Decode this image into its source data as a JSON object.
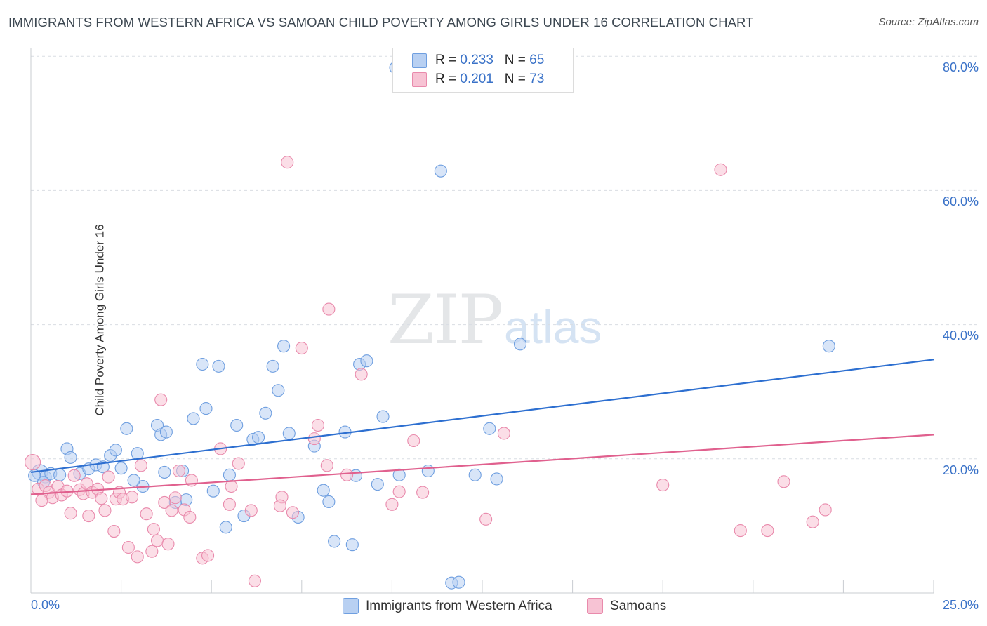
{
  "title": "IMMIGRANTS FROM WESTERN AFRICA VS SAMOAN CHILD POVERTY AMONG GIRLS UNDER 16 CORRELATION CHART",
  "source": "Source: ZipAtlas.com",
  "watermark": {
    "zip": "ZIP",
    "atlas": "atlas"
  },
  "colors": {
    "blue_fill": "#b8d0f2",
    "blue_stroke": "#6f9fe0",
    "blue_line": "#2d6fd0",
    "pink_fill": "#f7c3d4",
    "pink_stroke": "#e98aac",
    "pink_line": "#e0608e",
    "grid": "#d9dde3",
    "tick_text": "#3a72c8"
  },
  "legend_top": [
    {
      "r_label": "R = ",
      "r_value": "0.233",
      "n_label": "N = ",
      "n_value": "65"
    },
    {
      "r_label": "R = ",
      "r_value": "0.201",
      "n_label": "N = ",
      "n_value": "73"
    }
  ],
  "legend_bottom": [
    "Immigrants from Western Africa",
    "Samoans"
  ],
  "ylabel": "Child Poverty Among Girls Under 16",
  "y_ticks": [
    "80.0%",
    "60.0%",
    "40.0%",
    "20.0%"
  ],
  "x_ticks": [
    "0.0%",
    "25.0%"
  ],
  "chart_data": {
    "type": "scatter",
    "title": "IMMIGRANTS FROM WESTERN AFRICA VS SAMOAN CHILD POVERTY AMONG GIRLS UNDER 16 CORRELATION CHART",
    "xlabel": "",
    "ylabel": "Child Poverty Among Girls Under 16",
    "xlim": [
      0,
      25
    ],
    "ylim": [
      0,
      82
    ],
    "grid": true,
    "legend_placement": "top-center",
    "series": [
      {
        "name": "Immigrants from Western Africa",
        "r": 0.233,
        "n": 65,
        "trend": [
          [
            0,
            18.0
          ],
          [
            25,
            34.8
          ]
        ],
        "points": [
          [
            0.25,
            18.0
          ],
          [
            0.4,
            17.3
          ],
          [
            0.55,
            17.8
          ],
          [
            0.8,
            17.6
          ],
          [
            1.0,
            21.5
          ],
          [
            1.1,
            20.2
          ],
          [
            1.35,
            17.8
          ],
          [
            1.6,
            18.5
          ],
          [
            1.8,
            19.1
          ],
          [
            2.0,
            18.8
          ],
          [
            2.2,
            20.5
          ],
          [
            2.35,
            21.3
          ],
          [
            2.5,
            18.6
          ],
          [
            2.95,
            20.8
          ],
          [
            2.65,
            24.5
          ],
          [
            3.1,
            15.9
          ],
          [
            3.5,
            25.0
          ],
          [
            3.6,
            23.6
          ],
          [
            3.75,
            24.0
          ],
          [
            3.7,
            18.0
          ],
          [
            4.2,
            18.2
          ],
          [
            4.3,
            13.9
          ],
          [
            4.5,
            26.0
          ],
          [
            4.75,
            34.1
          ],
          [
            4.85,
            27.5
          ],
          [
            5.05,
            15.2
          ],
          [
            5.2,
            33.8
          ],
          [
            5.4,
            9.8
          ],
          [
            5.7,
            25.0
          ],
          [
            5.9,
            11.5
          ],
          [
            6.15,
            22.9
          ],
          [
            6.3,
            23.2
          ],
          [
            6.5,
            26.8
          ],
          [
            6.7,
            33.8
          ],
          [
            6.85,
            30.2
          ],
          [
            7.0,
            36.8
          ],
          [
            7.15,
            23.8
          ],
          [
            7.4,
            11.3
          ],
          [
            7.85,
            21.9
          ],
          [
            8.1,
            15.3
          ],
          [
            8.25,
            13.6
          ],
          [
            8.4,
            7.7
          ],
          [
            8.7,
            24.0
          ],
          [
            8.9,
            7.2
          ],
          [
            9.0,
            17.5
          ],
          [
            9.1,
            34.1
          ],
          [
            9.3,
            34.6
          ],
          [
            9.6,
            16.2
          ],
          [
            9.75,
            26.3
          ],
          [
            10.2,
            17.6
          ],
          [
            10.1,
            78.3
          ],
          [
            11.0,
            18.2
          ],
          [
            11.35,
            62.9
          ],
          [
            11.65,
            1.5
          ],
          [
            11.85,
            1.6
          ],
          [
            12.3,
            17.6
          ],
          [
            12.7,
            24.5
          ],
          [
            12.9,
            17.0
          ],
          [
            13.55,
            37.1
          ],
          [
            22.1,
            36.8
          ],
          [
            0.1,
            17.5
          ],
          [
            0.35,
            16.5
          ],
          [
            2.85,
            16.8
          ],
          [
            5.5,
            17.6
          ],
          [
            4.0,
            13.5
          ]
        ]
      },
      {
        "name": "Samoans",
        "r": 0.201,
        "n": 73,
        "trend": [
          [
            0,
            14.7
          ],
          [
            25,
            23.6
          ]
        ],
        "points": [
          [
            0.05,
            19.5
          ],
          [
            0.2,
            15.5
          ],
          [
            0.4,
            16.0
          ],
          [
            0.5,
            15.0
          ],
          [
            0.6,
            14.2
          ],
          [
            0.75,
            15.9
          ],
          [
            0.85,
            14.6
          ],
          [
            1.0,
            15.2
          ],
          [
            1.1,
            11.9
          ],
          [
            1.2,
            17.5
          ],
          [
            1.35,
            15.4
          ],
          [
            1.45,
            14.8
          ],
          [
            1.55,
            16.3
          ],
          [
            1.6,
            11.5
          ],
          [
            1.7,
            15.0
          ],
          [
            1.85,
            15.5
          ],
          [
            1.95,
            14.1
          ],
          [
            2.05,
            12.3
          ],
          [
            2.15,
            17.3
          ],
          [
            2.3,
            9.2
          ],
          [
            2.35,
            14.0
          ],
          [
            2.45,
            15.0
          ],
          [
            2.55,
            14.0
          ],
          [
            2.7,
            6.8
          ],
          [
            2.8,
            14.3
          ],
          [
            2.95,
            5.4
          ],
          [
            3.05,
            19.0
          ],
          [
            3.2,
            11.8
          ],
          [
            3.35,
            6.2
          ],
          [
            3.4,
            9.5
          ],
          [
            3.5,
            7.8
          ],
          [
            3.6,
            28.8
          ],
          [
            3.7,
            13.5
          ],
          [
            3.8,
            7.3
          ],
          [
            3.9,
            12.3
          ],
          [
            4.0,
            14.2
          ],
          [
            4.1,
            18.2
          ],
          [
            4.25,
            12.4
          ],
          [
            4.4,
            11.3
          ],
          [
            4.45,
            16.8
          ],
          [
            4.75,
            5.2
          ],
          [
            4.9,
            5.6
          ],
          [
            5.25,
            21.5
          ],
          [
            5.5,
            13.2
          ],
          [
            5.55,
            15.9
          ],
          [
            5.75,
            19.3
          ],
          [
            6.1,
            12.3
          ],
          [
            6.2,
            1.8
          ],
          [
            6.95,
            14.3
          ],
          [
            7.1,
            64.2
          ],
          [
            7.25,
            12.0
          ],
          [
            7.5,
            36.5
          ],
          [
            7.85,
            23.0
          ],
          [
            7.95,
            25.0
          ],
          [
            8.2,
            19.0
          ],
          [
            8.25,
            42.3
          ],
          [
            8.75,
            17.6
          ],
          [
            9.15,
            32.6
          ],
          [
            10.0,
            13.2
          ],
          [
            10.2,
            15.1
          ],
          [
            10.6,
            22.7
          ],
          [
            10.85,
            15.0
          ],
          [
            12.6,
            11.0
          ],
          [
            13.1,
            23.8
          ],
          [
            17.5,
            16.1
          ],
          [
            19.1,
            63.1
          ],
          [
            19.65,
            9.3
          ],
          [
            20.4,
            9.3
          ],
          [
            20.85,
            16.6
          ],
          [
            21.65,
            10.6
          ],
          [
            22.0,
            12.4
          ],
          [
            0.3,
            13.8
          ],
          [
            6.9,
            13.0
          ]
        ]
      }
    ]
  }
}
